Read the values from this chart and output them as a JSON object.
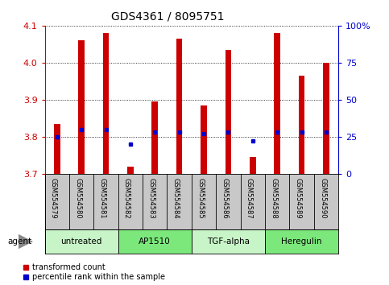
{
  "title": "GDS4361 / 8095751",
  "samples": [
    "GSM554579",
    "GSM554580",
    "GSM554581",
    "GSM554582",
    "GSM554583",
    "GSM554584",
    "GSM554585",
    "GSM554586",
    "GSM554587",
    "GSM554588",
    "GSM554589",
    "GSM554590"
  ],
  "red_values": [
    3.835,
    4.06,
    4.08,
    3.72,
    3.895,
    4.065,
    3.885,
    4.035,
    3.745,
    4.08,
    3.965,
    4.0
  ],
  "blue_values_pct": [
    25,
    30,
    30,
    20,
    28,
    28,
    27,
    28,
    22,
    28,
    28,
    28
  ],
  "ylim_left": [
    3.7,
    4.1
  ],
  "ylim_right": [
    0,
    100
  ],
  "yticks_left": [
    3.7,
    3.8,
    3.9,
    4.0,
    4.1
  ],
  "yticks_right": [
    0,
    25,
    50,
    75,
    100
  ],
  "ytick_labels_right": [
    "0",
    "25",
    "50",
    "75",
    "100%"
  ],
  "groups": [
    {
      "label": "untreated",
      "start": 0,
      "end": 3,
      "color": "#c8f5c8"
    },
    {
      "label": "AP1510",
      "start": 3,
      "end": 6,
      "color": "#7ce87c"
    },
    {
      "label": "TGF-alpha",
      "start": 6,
      "end": 9,
      "color": "#c8f5c8"
    },
    {
      "label": "Heregulin",
      "start": 9,
      "end": 12,
      "color": "#7ce87c"
    }
  ],
  "agent_label": "agent",
  "bar_bottom": 3.7,
  "bar_color": "#cc0000",
  "dot_color": "#0000cc",
  "legend_red": "transformed count",
  "legend_blue": "percentile rank within the sample",
  "background_color": "#ffffff",
  "tick_color_left": "#cc0000",
  "tick_color_right": "#0000cc",
  "plot_bg": "#ffffff",
  "label_bg": "#c8c8c8",
  "bar_width": 0.25
}
